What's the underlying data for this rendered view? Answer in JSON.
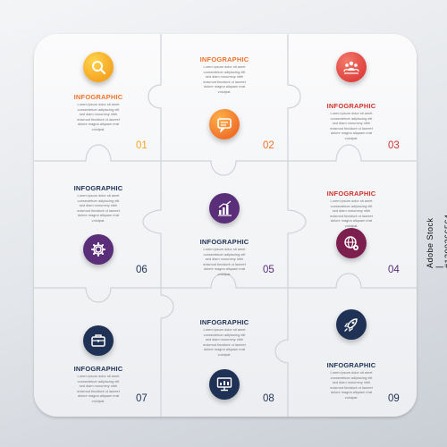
{
  "colors": {
    "orange": "#f5a623",
    "orange_red": "#f0722a",
    "red": "#e0433f",
    "purple": "#5a2e78",
    "plum": "#7c1f4f",
    "navy": "#1f3154",
    "title_orange": "#f0722a",
    "title_red": "#d0342c",
    "title_navy": "#1f3154"
  },
  "cards": [
    {
      "id": 1,
      "number": "01",
      "title": "INFOGRAPHIC",
      "icon": "magnifier-icon",
      "color": "#f5a623",
      "text": [
        "Lorem ipsum dolor sit amet",
        "consectetuer adipiscing elit",
        "sed diam nonummy nibh",
        "euismod tincidunt ut laoreet",
        "dolore magna aliquam erat",
        "volutpat."
      ]
    },
    {
      "id": 2,
      "number": "02",
      "title": "INFOGRAPHIC",
      "icon": "chat-bubble-icon",
      "color": "#f0722a",
      "text": [
        "Lorem ipsum dolor sit amet",
        "consectetuer adipiscing elit",
        "sed diam nonummy nibh",
        "euismod tincidunt ut laoreet",
        "dolore magna aliquam erat",
        "volutpat."
      ]
    },
    {
      "id": 3,
      "number": "03",
      "title": "INFOGRAPHIC",
      "icon": "team-icon",
      "color": "#e0433f",
      "text": [
        "Lorem ipsum dolor sit amet",
        "consectetuer adipiscing elit",
        "sed diam nonummy nibh",
        "euismod tincidunt ut laoreet",
        "dolore magna aliquam erat",
        "volutpat."
      ]
    },
    {
      "id": 4,
      "number": "04",
      "title": "INFOGRAPHIC",
      "icon": "globe-settings-icon",
      "color": "#7c1f4f",
      "text": [
        "Lorem ipsum dolor sit amet",
        "consectetuer adipiscing elit",
        "sed diam nonummy nibh",
        "euismod tincidunt ut laoreet",
        "dolore magna aliquam erat",
        "volutpat."
      ]
    },
    {
      "id": 5,
      "number": "05",
      "title": "INFOGRAPHIC",
      "icon": "bar-chart-icon",
      "color": "#5a2e78",
      "text": [
        "Lorem ipsum dolor sit amet",
        "consectetuer adipiscing elit",
        "sed diam nonummy nibh",
        "euismod tincidunt ut laoreet",
        "dolore magna aliquam erat",
        "volutpat."
      ]
    },
    {
      "id": 6,
      "number": "06",
      "title": "INFOGRAPHIC",
      "icon": "gear-icon",
      "color": "#5a2e78",
      "text": [
        "Lorem ipsum dolor sit amet",
        "consectetuer adipiscing elit",
        "sed diam nonummy nibh",
        "euismod tincidunt ut laoreet",
        "dolore magna aliquam erat",
        "volutpat."
      ]
    },
    {
      "id": 7,
      "number": "07",
      "title": "INFOGRAPHIC",
      "icon": "briefcase-icon",
      "color": "#1f3154",
      "text": [
        "Lorem ipsum dolor sit amet",
        "consectetuer adipiscing elit",
        "sed diam nonummy nibh",
        "euismod tincidunt ut laoreet",
        "dolore magna aliquam erat",
        "volutpat."
      ]
    },
    {
      "id": 8,
      "number": "08",
      "title": "INFOGRAPHIC",
      "icon": "monitor-chart-icon",
      "color": "#1f3154",
      "text": [
        "Lorem ipsum dolor sit amet",
        "consectetuer adipiscing elit",
        "sed diam nonummy nibh",
        "euismod tincidunt ut laoreet",
        "dolore magna aliquam erat",
        "volutpat."
      ]
    },
    {
      "id": 9,
      "number": "09",
      "title": "INFOGRAPHIC",
      "icon": "rocket-icon",
      "color": "#1f3154",
      "text": [
        "Lorem ipsum dolor sit amet",
        "consectetuer adipiscing elit",
        "sed diam nonummy nibh",
        "euismod tincidunt ut laoreet",
        "dolore magna aliquam erat",
        "volutpat."
      ]
    }
  ],
  "watermark": "Adobe Stock | #1209266564"
}
